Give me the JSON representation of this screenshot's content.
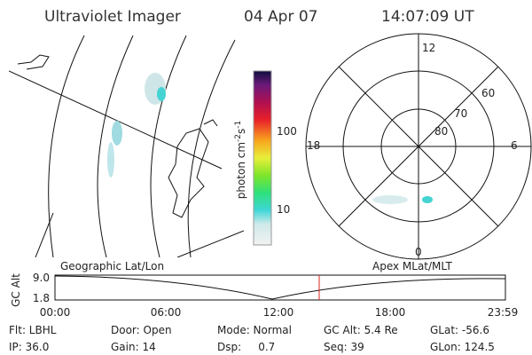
{
  "header": {
    "title": "Ultraviolet Imager",
    "date": "04 Apr 07",
    "time": "14:07:09 UT"
  },
  "colorbar": {
    "label": "photon cm",
    "exp1": "-2",
    "unit2": "s",
    "exp2": "-1",
    "ticks": [
      "100",
      "10"
    ]
  },
  "polar": {
    "rings": [
      "60",
      "70",
      "80"
    ],
    "hours": [
      "12",
      "0",
      "18",
      "6"
    ]
  },
  "timeline": {
    "left_label": "Geographic Lat/Lon",
    "right_label": "Apex MLat/MLT",
    "axis_label": "GC Alt",
    "ymax": "9.0",
    "ymin": "1.8",
    "times": [
      "00:00",
      "06:00",
      "12:00",
      "18:00",
      "23:59"
    ]
  },
  "footer": {
    "rows": [
      [
        "Flt: LBHL",
        "Door: Open",
        "Mode: Normal",
        "GC Alt: 5.4 Re",
        "GLat: -56.6"
      ],
      [
        "IP: 36.0",
        "Gain: 14",
        "Dsp:     0.7",
        "Seq: 39",
        "GLon: 124.5"
      ]
    ]
  }
}
